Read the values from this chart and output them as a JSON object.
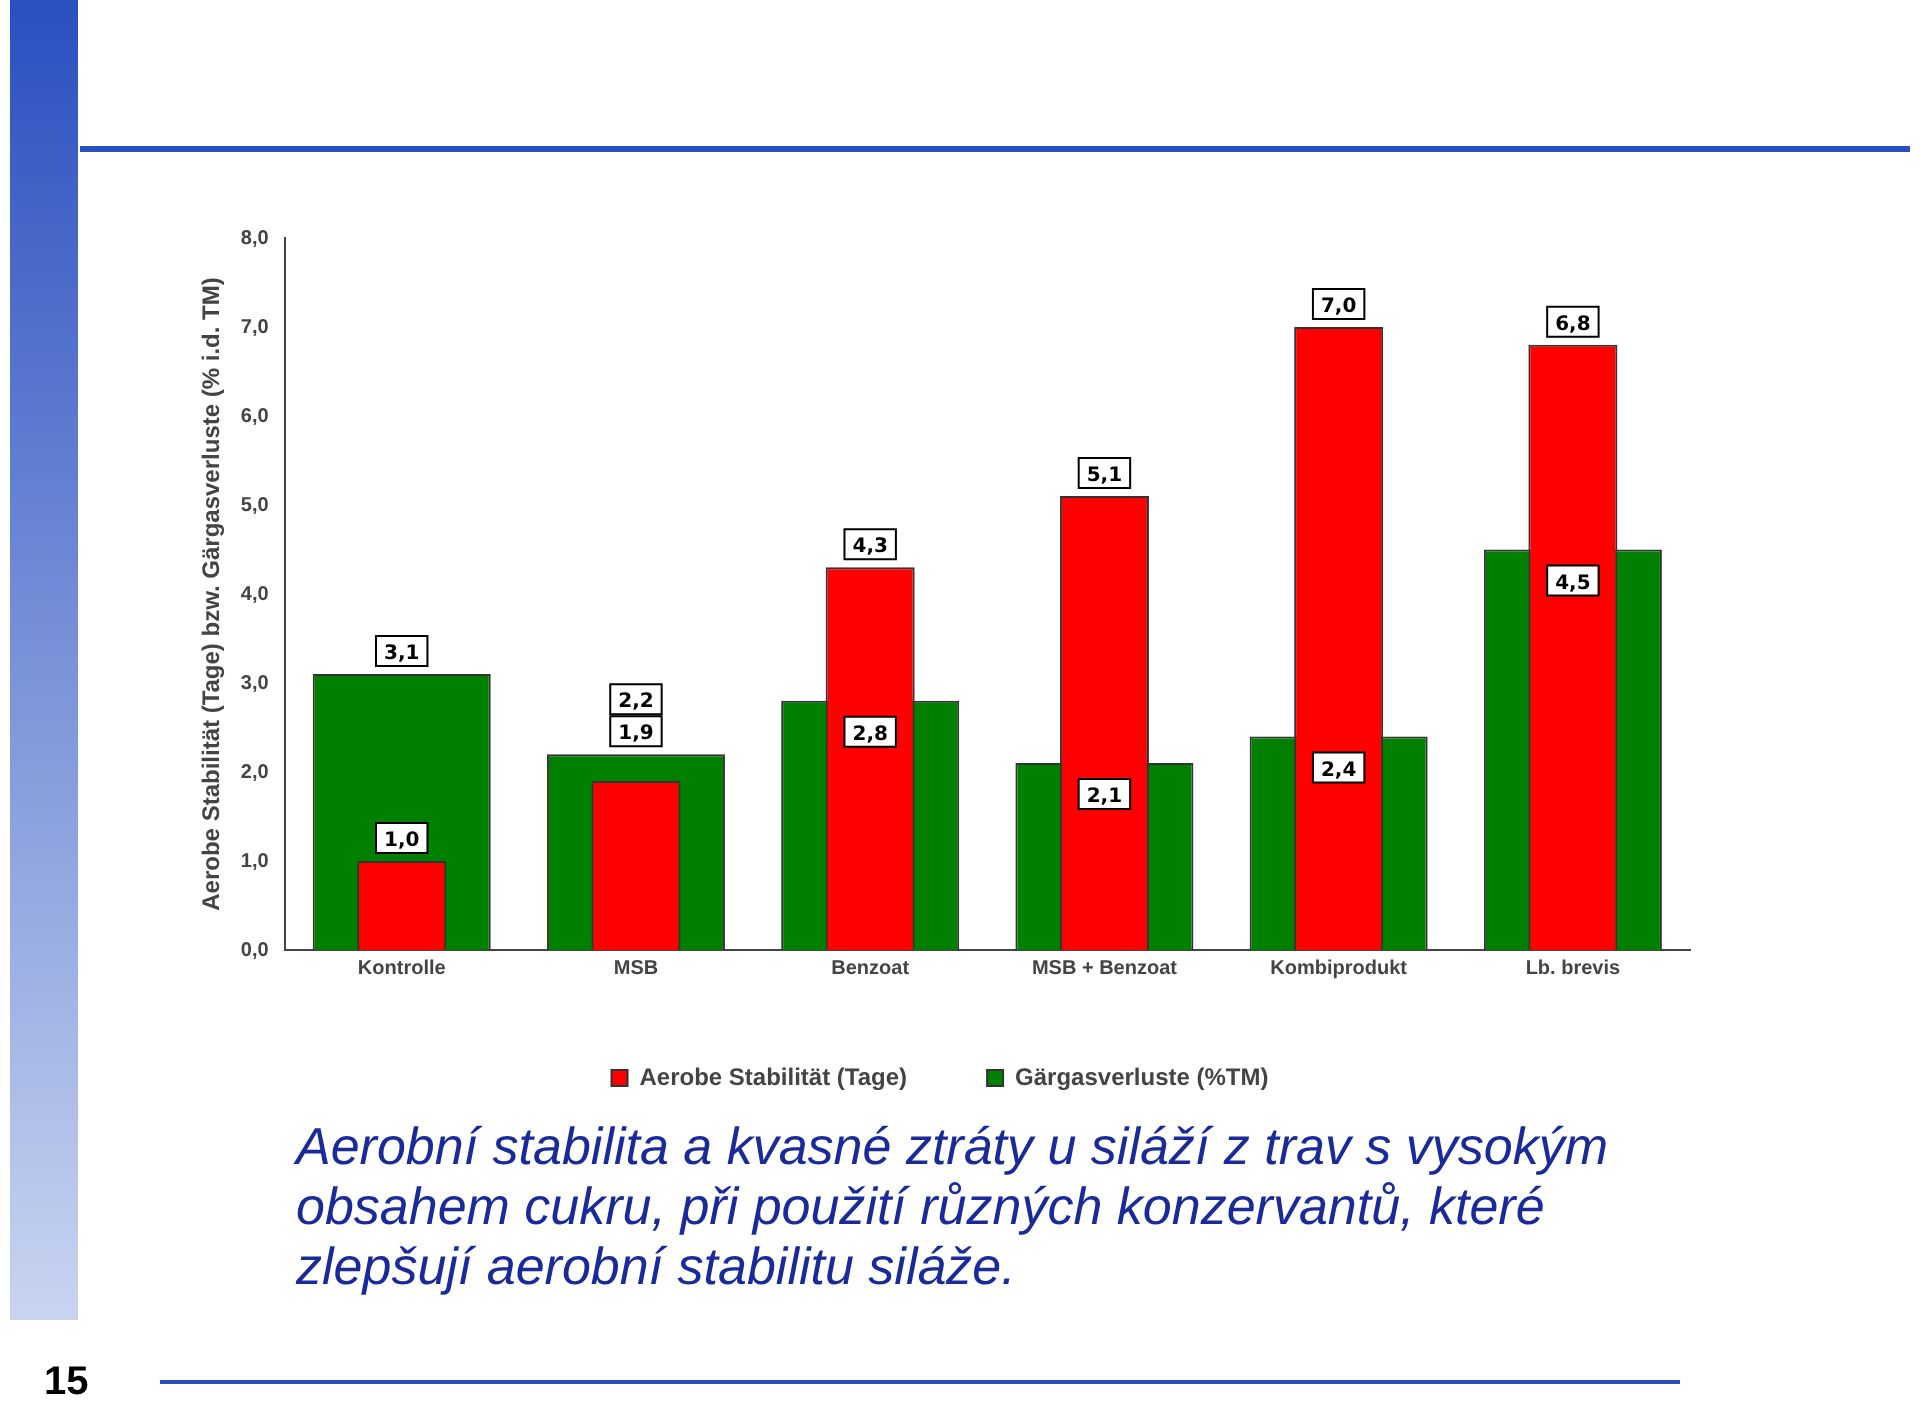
{
  "chart_data": {
    "type": "bar",
    "title": "Aerobní stabilita a kvasné ztráty u siláží z trav s vysokým obsahem cukru, při použití různých konzervantů, které zlepšují aerobní stabilitu siláže.",
    "ylabel": "Aerobe Stabilität (Tage) bzw. Gärgasverluste (% i.d. TM)",
    "categories": [
      "Kontrolle",
      "MSB",
      "Benzoat",
      "MSB + Benzoat",
      "Kombiprodukt",
      "Lb. brevis"
    ],
    "series": [
      {
        "name": "Gärgasverluste (%TM)",
        "color": "#008000",
        "values": [
          3.1,
          2.2,
          2.8,
          2.1,
          2.4,
          4.5
        ],
        "value_labels": [
          "3,1",
          "2,2",
          "2,8",
          "2,1",
          "2,4",
          "4,5"
        ]
      },
      {
        "name": "Aerobe Stabilität (Tage)",
        "color": "#ff0000",
        "values": [
          1.0,
          1.9,
          4.3,
          5.1,
          7.0,
          6.8
        ],
        "value_labels": [
          "1,0",
          "1,9",
          "4,3",
          "5,1",
          "7,0",
          "6,8"
        ]
      }
    ],
    "ylim": [
      0,
      8
    ],
    "yticks": [
      {
        "value": 0,
        "label": "0,0"
      },
      {
        "value": 1,
        "label": "1,0"
      },
      {
        "value": 2,
        "label": "2,0"
      },
      {
        "value": 3,
        "label": "3,0"
      },
      {
        "value": 4,
        "label": "4,0"
      },
      {
        "value": 5,
        "label": "5,0"
      },
      {
        "value": 6,
        "label": "6,0"
      },
      {
        "value": 7,
        "label": "7,0"
      },
      {
        "value": 8,
        "label": "8,0"
      }
    ],
    "grid": false,
    "legend": "bottom",
    "annotations": [
      "15"
    ]
  }
}
